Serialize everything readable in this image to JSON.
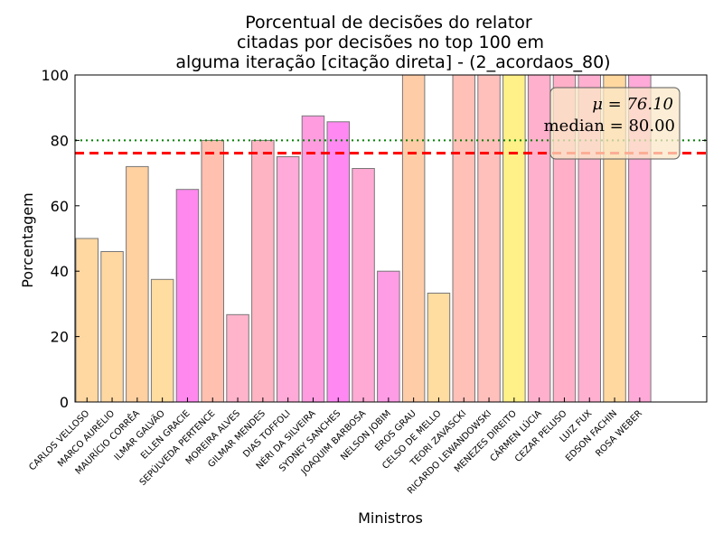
{
  "chart_data": {
    "type": "bar",
    "title_lines": [
      "Porcentual de decisões do relator",
      "citadas por decisões no top 100 em",
      "alguma iteração [citação direta] - (2_acordaos_80)"
    ],
    "xlabel": "Ministros",
    "ylabel": "Porcentagem",
    "ylim": [
      0,
      100
    ],
    "yticks": [
      "0",
      "20",
      "40",
      "60",
      "80",
      "100"
    ],
    "grid": false,
    "categories": [
      "CARLOS VELLOSO",
      "MARCO AURÉLIO",
      "MAURÍCIO CORRÊA",
      "ILMAR GALVÃO",
      "ELLEN GRACIE",
      "SEPÚLVEDA PERTENCE",
      "MOREIRA ALVES",
      "GILMAR MENDES",
      "DIAS TOFFOLI",
      "NÉRI DA SILVEIRA",
      "SYDNEY SANCHES",
      "JOAQUIM BARBOSA",
      "NELSON JOBIM",
      "EROS GRAU",
      "CELSO DE MELLO",
      "TEORI ZAVASCKI",
      "RICARDO LEWANDOWSKI",
      "MENEZES DIREITO",
      "CÁRMEN LÚCIA",
      "CEZAR PELUSO",
      "LUIZ FUX",
      "EDSON FACHIN",
      "ROSA WEBER"
    ],
    "values": [
      50,
      46,
      72,
      37.5,
      65,
      80,
      26.7,
      80,
      75,
      87.5,
      85.7,
      71.4,
      40,
      100,
      33.3,
      100,
      100,
      100,
      100,
      100,
      100,
      100,
      100
    ],
    "bar_colors": [
      "#ffd7a0",
      "#ffd7a0",
      "#ffd0a0",
      "#ffdca0",
      "#ff88ee",
      "#ffc0b0",
      "#ffb4cc",
      "#ffb4c4",
      "#ffaad8",
      "#ff9ce0",
      "#ff88f2",
      "#ffaad4",
      "#ff9ce6",
      "#ffcca8",
      "#ffdca0",
      "#ffc0b8",
      "#ffc0bc",
      "#fff088",
      "#ffb0cc",
      "#ffb0c8",
      "#ffb0d0",
      "#ffd8a0",
      "#ffaad8"
    ],
    "mean": 76.1,
    "median": 80.0,
    "mean_line_color": "#ff0000",
    "median_line_color": "#008000",
    "legend": {
      "placement": "top-right",
      "mean_text": "μ = 76.10",
      "median_text": "median = 80.00",
      "background": "#fbe8c8"
    }
  }
}
